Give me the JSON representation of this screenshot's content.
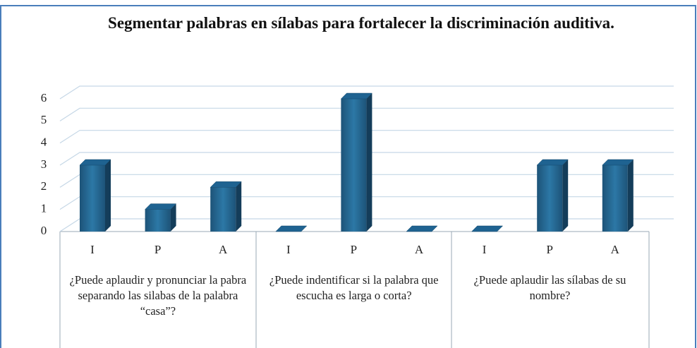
{
  "chart_data": {
    "type": "bar",
    "title": "Segmentar palabras en sílabas para fortalecer la discriminación auditiva.",
    "groups": [
      {
        "label": "¿Puede aplaudir y pronunciar la pabra separando las silabas de la palabra “casa”?",
        "categories": [
          "I",
          "P",
          "A"
        ],
        "values": [
          3,
          1,
          2
        ]
      },
      {
        "label": "¿Puede indentificar si la palabra que escucha es larga o corta?",
        "categories": [
          "I",
          "P",
          "A"
        ],
        "values": [
          0,
          6,
          0
        ]
      },
      {
        "label": "¿Puede aplaudir las sílabas de su nombre?",
        "categories": [
          "I",
          "P",
          "A"
        ],
        "values": [
          0,
          3,
          3
        ]
      }
    ],
    "color": "#1f6391",
    "ylim": [
      0,
      6
    ],
    "yticks": [
      0,
      1,
      2,
      3,
      4,
      5,
      6
    ],
    "grid": true
  }
}
